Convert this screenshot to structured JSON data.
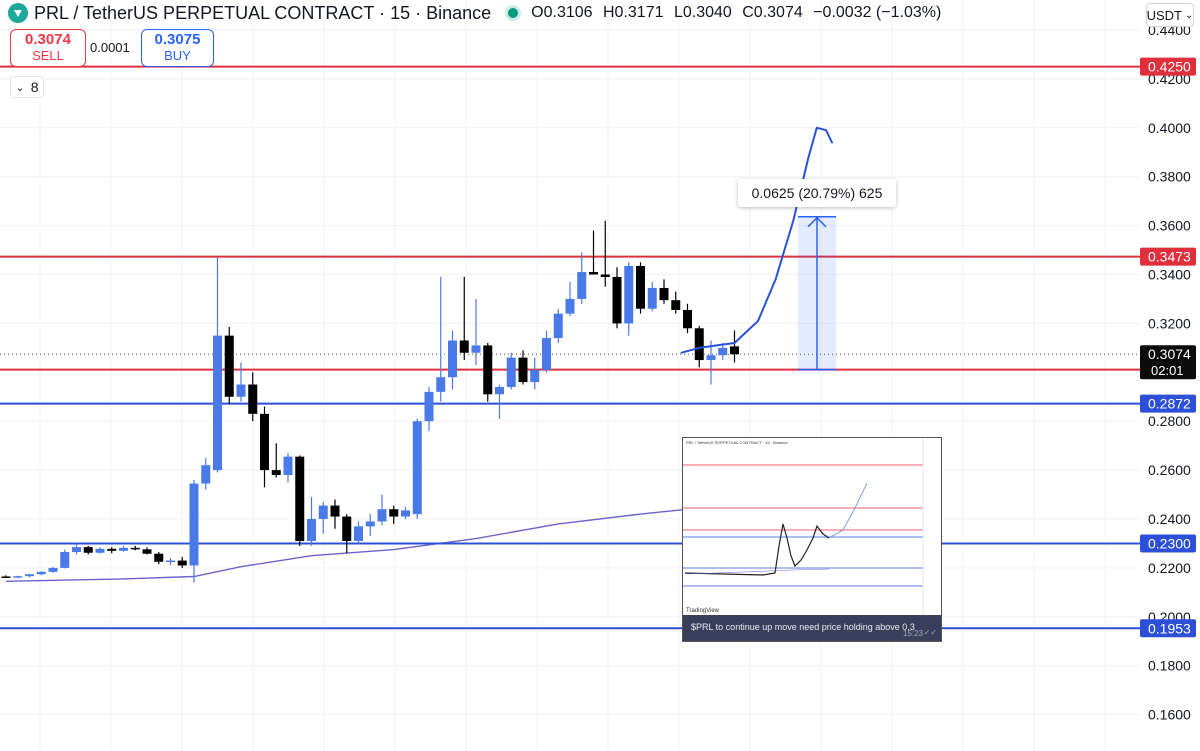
{
  "header": {
    "title": "PRL / TetherUS PERPETUAL CONTRACT · 15 · Binance",
    "open": "O0.3106",
    "high": "H0.3171",
    "low": "L0.3040",
    "close": "C0.3074",
    "change": "−0.0032 (−1.03%)"
  },
  "currency": "USDT",
  "trade": {
    "sell_price": "0.3074",
    "sell_label": "SELL",
    "spread": "0.0001",
    "buy_price": "0.3075",
    "buy_label": "BUY"
  },
  "indicator_count": "8",
  "measure_label": "0.0625 (20.79%) 625",
  "countdown": "02:01",
  "inset": {
    "caption": "$PRL to continue up move need price holding above 0.3",
    "time": "15:23",
    "brand": "TradingView"
  },
  "colors": {
    "up": "#4a7ae8",
    "down": "#000000",
    "red_line": "#e02f3c",
    "blue_line": "#2c4fd8",
    "drawing": "#2a52d6"
  },
  "chart_data": {
    "type": "candlestick",
    "ylim": [
      0.15,
      0.445
    ],
    "y_ticks": [
      "0.4400",
      "0.4200",
      "0.4000",
      "0.3800",
      "0.3600",
      "0.3400",
      "0.3200",
      "0.3000",
      "0.2800",
      "0.2600",
      "0.2400",
      "0.2200",
      "0.2000",
      "0.1800",
      "0.1600"
    ],
    "candles": [
      {
        "o": 0.2165,
        "h": 0.217,
        "l": 0.216,
        "c": 0.2163
      },
      {
        "o": 0.2162,
        "h": 0.2168,
        "l": 0.2158,
        "c": 0.2166
      },
      {
        "o": 0.2166,
        "h": 0.2176,
        "l": 0.2162,
        "c": 0.2174
      },
      {
        "o": 0.2174,
        "h": 0.2186,
        "l": 0.217,
        "c": 0.2184
      },
      {
        "o": 0.2184,
        "h": 0.2204,
        "l": 0.218,
        "c": 0.22
      },
      {
        "o": 0.22,
        "h": 0.2275,
        "l": 0.2198,
        "c": 0.2265
      },
      {
        "o": 0.2265,
        "h": 0.23,
        "l": 0.2255,
        "c": 0.2285
      },
      {
        "o": 0.2285,
        "h": 0.229,
        "l": 0.2255,
        "c": 0.2262
      },
      {
        "o": 0.2262,
        "h": 0.2285,
        "l": 0.2258,
        "c": 0.2278
      },
      {
        "o": 0.2278,
        "h": 0.2285,
        "l": 0.226,
        "c": 0.227
      },
      {
        "o": 0.227,
        "h": 0.229,
        "l": 0.2266,
        "c": 0.2282
      },
      {
        "o": 0.2282,
        "h": 0.229,
        "l": 0.2272,
        "c": 0.2276
      },
      {
        "o": 0.2276,
        "h": 0.2284,
        "l": 0.2255,
        "c": 0.2258
      },
      {
        "o": 0.2258,
        "h": 0.2265,
        "l": 0.2215,
        "c": 0.2225
      },
      {
        "o": 0.2225,
        "h": 0.224,
        "l": 0.2212,
        "c": 0.223
      },
      {
        "o": 0.223,
        "h": 0.2245,
        "l": 0.22,
        "c": 0.221
      },
      {
        "o": 0.221,
        "h": 0.256,
        "l": 0.214,
        "c": 0.2545
      },
      {
        "o": 0.2545,
        "h": 0.265,
        "l": 0.252,
        "c": 0.262
      },
      {
        "o": 0.26,
        "h": 0.347,
        "l": 0.259,
        "c": 0.315
      },
      {
        "o": 0.315,
        "h": 0.3185,
        "l": 0.287,
        "c": 0.29
      },
      {
        "o": 0.29,
        "h": 0.304,
        "l": 0.288,
        "c": 0.295
      },
      {
        "o": 0.295,
        "h": 0.3,
        "l": 0.28,
        "c": 0.283
      },
      {
        "o": 0.283,
        "h": 0.286,
        "l": 0.253,
        "c": 0.26
      },
      {
        "o": 0.26,
        "h": 0.271,
        "l": 0.257,
        "c": 0.258
      },
      {
        "o": 0.258,
        "h": 0.267,
        "l": 0.255,
        "c": 0.2655
      },
      {
        "o": 0.2655,
        "h": 0.266,
        "l": 0.229,
        "c": 0.231
      },
      {
        "o": 0.231,
        "h": 0.249,
        "l": 0.229,
        "c": 0.24
      },
      {
        "o": 0.24,
        "h": 0.247,
        "l": 0.234,
        "c": 0.2455
      },
      {
        "o": 0.2455,
        "h": 0.248,
        "l": 0.236,
        "c": 0.241
      },
      {
        "o": 0.241,
        "h": 0.242,
        "l": 0.226,
        "c": 0.231
      },
      {
        "o": 0.231,
        "h": 0.239,
        "l": 0.23,
        "c": 0.237
      },
      {
        "o": 0.237,
        "h": 0.242,
        "l": 0.233,
        "c": 0.239
      },
      {
        "o": 0.239,
        "h": 0.25,
        "l": 0.2375,
        "c": 0.244
      },
      {
        "o": 0.244,
        "h": 0.2455,
        "l": 0.238,
        "c": 0.241
      },
      {
        "o": 0.241,
        "h": 0.245,
        "l": 0.24,
        "c": 0.2435
      },
      {
        "o": 0.242,
        "h": 0.281,
        "l": 0.24,
        "c": 0.28
      },
      {
        "o": 0.28,
        "h": 0.294,
        "l": 0.276,
        "c": 0.292
      },
      {
        "o": 0.292,
        "h": 0.339,
        "l": 0.288,
        "c": 0.298
      },
      {
        "o": 0.298,
        "h": 0.317,
        "l": 0.293,
        "c": 0.313
      },
      {
        "o": 0.313,
        "h": 0.339,
        "l": 0.305,
        "c": 0.308
      },
      {
        "o": 0.308,
        "h": 0.33,
        "l": 0.303,
        "c": 0.311
      },
      {
        "o": 0.311,
        "h": 0.312,
        "l": 0.288,
        "c": 0.291
      },
      {
        "o": 0.291,
        "h": 0.295,
        "l": 0.281,
        "c": 0.294
      },
      {
        "o": 0.294,
        "h": 0.308,
        "l": 0.293,
        "c": 0.306
      },
      {
        "o": 0.306,
        "h": 0.309,
        "l": 0.295,
        "c": 0.296
      },
      {
        "o": 0.296,
        "h": 0.306,
        "l": 0.293,
        "c": 0.301
      },
      {
        "o": 0.301,
        "h": 0.317,
        "l": 0.3,
        "c": 0.314
      },
      {
        "o": 0.314,
        "h": 0.326,
        "l": 0.312,
        "c": 0.324
      },
      {
        "o": 0.324,
        "h": 0.337,
        "l": 0.323,
        "c": 0.33
      },
      {
        "o": 0.33,
        "h": 0.349,
        "l": 0.328,
        "c": 0.341
      },
      {
        "o": 0.341,
        "h": 0.358,
        "l": 0.34,
        "c": 0.34
      },
      {
        "o": 0.34,
        "h": 0.362,
        "l": 0.335,
        "c": 0.339
      },
      {
        "o": 0.339,
        "h": 0.343,
        "l": 0.318,
        "c": 0.32
      },
      {
        "o": 0.32,
        "h": 0.345,
        "l": 0.315,
        "c": 0.3435
      },
      {
        "o": 0.3435,
        "h": 0.345,
        "l": 0.324,
        "c": 0.326
      },
      {
        "o": 0.326,
        "h": 0.337,
        "l": 0.325,
        "c": 0.3345
      },
      {
        "o": 0.3345,
        "h": 0.338,
        "l": 0.328,
        "c": 0.3295
      },
      {
        "o": 0.3295,
        "h": 0.333,
        "l": 0.324,
        "c": 0.3255
      },
      {
        "o": 0.3255,
        "h": 0.328,
        "l": 0.316,
        "c": 0.318
      },
      {
        "o": 0.318,
        "h": 0.319,
        "l": 0.302,
        "c": 0.305
      },
      {
        "o": 0.305,
        "h": 0.313,
        "l": 0.295,
        "c": 0.307
      },
      {
        "o": 0.307,
        "h": 0.312,
        "l": 0.305,
        "c": 0.31
      },
      {
        "o": 0.3106,
        "h": 0.3171,
        "l": 0.304,
        "c": 0.3074
      }
    ],
    "moving_average": [
      [
        0,
        0.2145
      ],
      [
        10,
        0.2155
      ],
      [
        16,
        0.2165
      ],
      [
        20,
        0.2205
      ],
      [
        26,
        0.225
      ],
      [
        33,
        0.2275
      ],
      [
        40,
        0.232
      ],
      [
        47,
        0.238
      ],
      [
        54,
        0.242
      ],
      [
        61,
        0.2455
      ]
    ],
    "horizontal_lines": [
      {
        "price": 0.425,
        "label": "0.4250",
        "color": "red"
      },
      {
        "price": 0.3473,
        "label": "0.3473",
        "color": "red"
      },
      {
        "price": 0.3011,
        "label": "0.3011",
        "color": "red"
      },
      {
        "price": 0.2872,
        "label": "0.2872",
        "color": "blue"
      },
      {
        "price": 0.23,
        "label": "0.2300",
        "color": "blue"
      },
      {
        "price": 0.1953,
        "label": "0.1953",
        "color": "blue"
      }
    ],
    "last_price": {
      "price": 0.3074,
      "label": "0.3074"
    },
    "measure": {
      "from": 0.3011,
      "to": 0.3636
    },
    "drawing_path": [
      [
        57.5,
        0.308
      ],
      [
        59,
        0.31
      ],
      [
        62,
        0.312
      ],
      [
        64,
        0.321
      ],
      [
        65.5,
        0.338
      ],
      [
        67,
        0.362
      ],
      [
        68.3,
        0.388
      ],
      [
        69,
        0.4
      ],
      [
        69.8,
        0.399
      ],
      [
        70.3,
        0.394
      ]
    ]
  }
}
